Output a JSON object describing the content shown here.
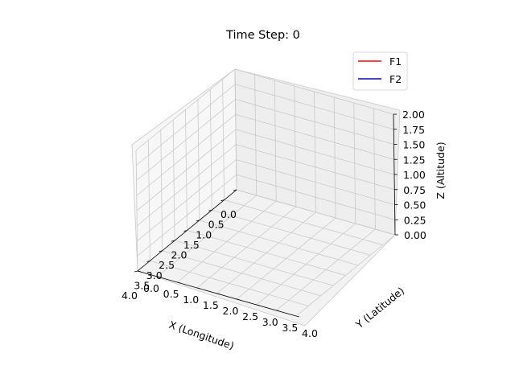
{
  "chart_data": {
    "type": "line",
    "projection": "3d",
    "title": "Time Step: 0",
    "xlabel": "X (Longitude)",
    "ylabel": "Y (Latitude)",
    "zlabel": "Z (Altitude)",
    "xlim": [
      0,
      4
    ],
    "ylim": [
      0,
      4
    ],
    "zlim": [
      0,
      2
    ],
    "xticks": [
      "0.0",
      "0.5",
      "1.0",
      "1.5",
      "2.0",
      "2.5",
      "3.0",
      "3.5",
      "4.0"
    ],
    "yticks": [
      "0.0",
      "0.5",
      "1.0",
      "1.5",
      "2.0",
      "2.5",
      "3.0",
      "3.5",
      "4.0"
    ],
    "zticks": [
      "0.00",
      "0.25",
      "0.50",
      "0.75",
      "1.00",
      "1.25",
      "1.50",
      "1.75",
      "2.00"
    ],
    "grid": true,
    "legend_position": "top-right",
    "series": [
      {
        "name": "F1",
        "color": "#ff0000",
        "x": [],
        "y": [],
        "z": []
      },
      {
        "name": "F2",
        "color": "#0000ff",
        "x": [],
        "y": [],
        "z": []
      }
    ]
  }
}
